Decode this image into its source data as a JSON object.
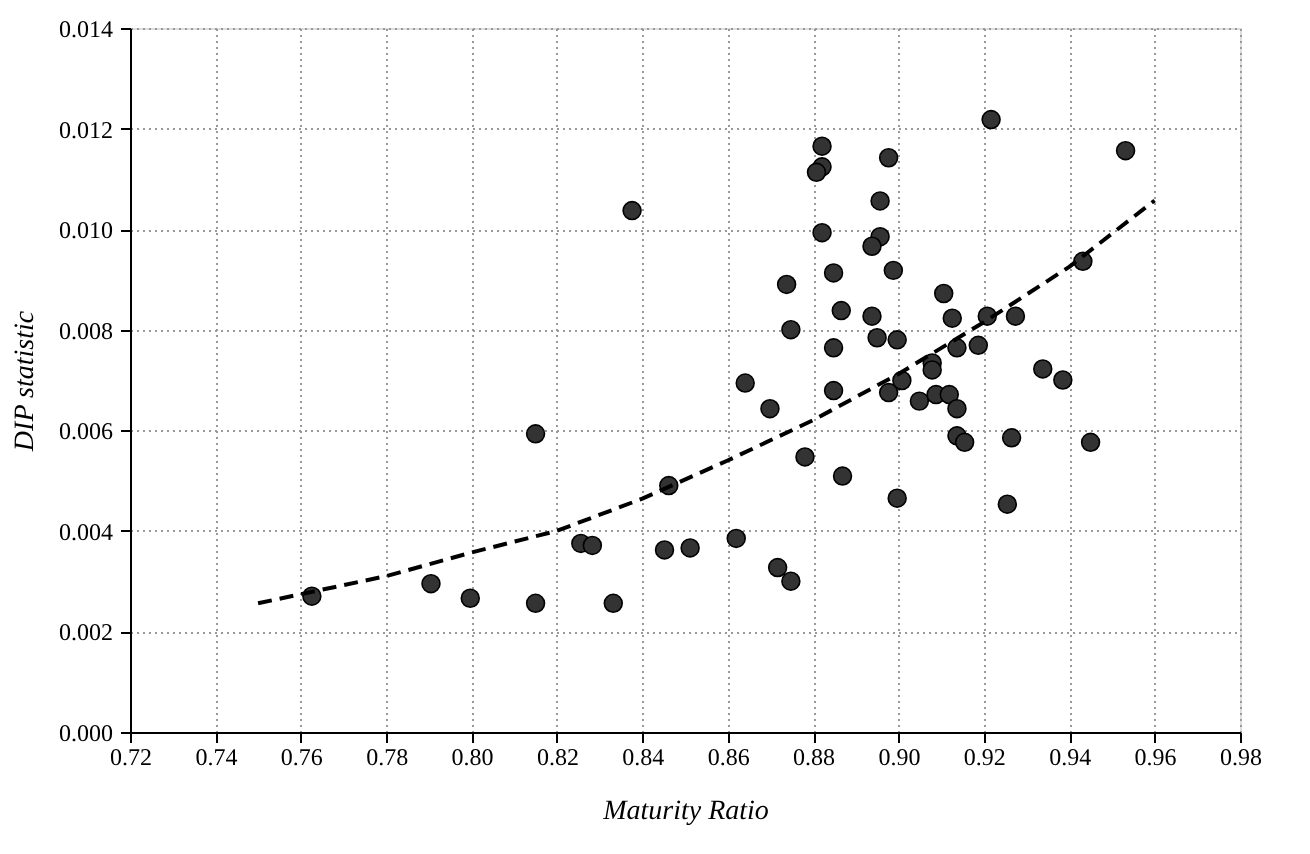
{
  "chart_data": {
    "type": "scatter",
    "xlabel": "Maturity Ratio",
    "ylabel": "DIP statistic",
    "grid": true,
    "xlim": [
      0.72,
      0.98
    ],
    "ylim": [
      0,
      0.014
    ],
    "xticks": [
      {
        "value": 0.72,
        "label": "0.72"
      },
      {
        "value": 0.74,
        "label": "0.74"
      },
      {
        "value": 0.76,
        "label": "0.76"
      },
      {
        "value": 0.78,
        "label": "0.78"
      },
      {
        "value": 0.8,
        "label": "0.80"
      },
      {
        "value": 0.82,
        "label": "0.82"
      },
      {
        "value": 0.84,
        "label": "0.84"
      },
      {
        "value": 0.86,
        "label": "0.86"
      },
      {
        "value": 0.88,
        "label": "0.88"
      },
      {
        "value": 0.9,
        "label": "0.90"
      },
      {
        "value": 0.92,
        "label": "0.92"
      },
      {
        "value": 0.94,
        "label": "0.94"
      },
      {
        "value": 0.96,
        "label": "0.96"
      },
      {
        "value": 0.98,
        "label": "0.98"
      }
    ],
    "yticks": [
      {
        "value": 0,
        "label": "0.000"
      },
      {
        "value": 0.002,
        "label": "0.002"
      },
      {
        "value": 0.004,
        "label": "0.004"
      },
      {
        "value": 0.006,
        "label": "0.006"
      },
      {
        "value": 0.008,
        "label": "0.008"
      },
      {
        "value": 0.01,
        "label": "0.010"
      },
      {
        "value": 0.012,
        "label": "0.012"
      },
      {
        "value": 0.014,
        "label": "0.014"
      }
    ],
    "series": [
      {
        "marker": "circle",
        "color": "#333333",
        "x": [
          0.7626,
          0.7905,
          0.7997,
          0.815,
          0.815,
          0.8256,
          0.8283,
          0.8332,
          0.8376,
          0.8452,
          0.8462,
          0.8512,
          0.862,
          0.8641,
          0.8699,
          0.8717,
          0.8748,
          0.8738,
          0.8748,
          0.8781,
          0.8821,
          0.8821,
          0.8808,
          0.8821,
          0.8848,
          0.8866,
          0.8848,
          0.8848,
          0.8869,
          0.8977,
          0.8957,
          0.8957,
          0.8938,
          0.8988,
          0.8938,
          0.895,
          0.8997,
          0.8977,
          0.9008,
          0.8997,
          0.9049,
          0.9079,
          0.9079,
          0.9088,
          0.9106,
          0.9126,
          0.9119,
          0.9137,
          0.9137,
          0.9137,
          0.9155,
          0.9187,
          0.9208,
          0.9217,
          0.9274,
          0.9265,
          0.9255,
          0.9338,
          0.9385,
          0.9432,
          0.945,
          0.9532
        ],
        "values": [
          0.0027,
          0.00295,
          0.00266,
          0.00593,
          0.00256,
          0.00375,
          0.00371,
          0.00256,
          0.01037,
          0.00362,
          0.0049,
          0.00366,
          0.00385,
          0.00694,
          0.00643,
          0.00327,
          0.003,
          0.0089,
          0.008,
          0.00547,
          0.01165,
          0.01124,
          0.01113,
          0.00993,
          0.00913,
          0.00838,
          0.00764,
          0.00679,
          0.00509,
          0.01142,
          0.01056,
          0.00985,
          0.00966,
          0.00918,
          0.00827,
          0.00784,
          0.0078,
          0.00675,
          0.00699,
          0.00465,
          0.00658,
          0.00734,
          0.0072,
          0.00671,
          0.00872,
          0.00823,
          0.00671,
          0.00764,
          0.00643,
          0.00589,
          0.00576,
          0.00769,
          0.00827,
          0.01218,
          0.00827,
          0.00585,
          0.00453,
          0.00722,
          0.007,
          0.00936,
          0.00576,
          0.01156
        ]
      },
      {
        "type": "line",
        "marker": "none",
        "line_style": "dashed",
        "color": "#000000",
        "x": [
          0.75,
          0.78,
          0.8,
          0.82,
          0.84,
          0.86,
          0.88,
          0.9,
          0.92,
          0.94,
          0.96
        ],
        "values": [
          0.00256,
          0.0031,
          0.00357,
          0.004,
          0.00464,
          0.0054,
          0.0062,
          0.00712,
          0.00815,
          0.00925,
          0.01057
        ]
      }
    ]
  }
}
